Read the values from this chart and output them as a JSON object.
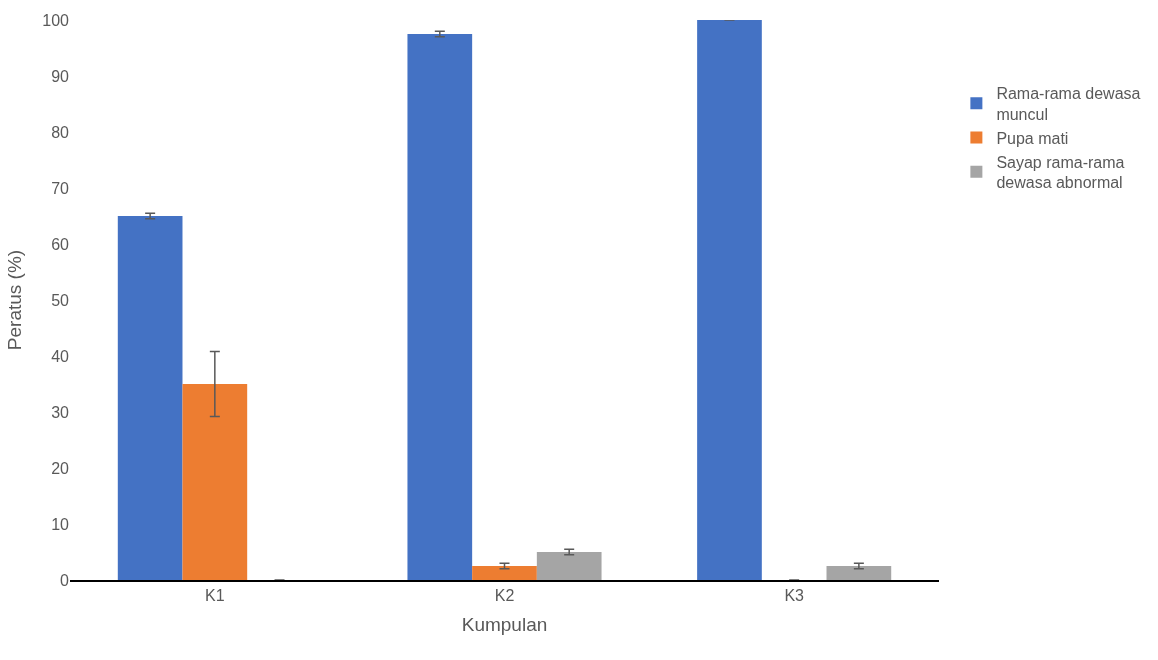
{
  "chart_data": {
    "type": "bar",
    "xlabel": "Kumpulan",
    "ylabel": "Peratus (%)",
    "categories": [
      "K1",
      "K2",
      "K3"
    ],
    "series": [
      {
        "name": "Rama-rama dewasa muncul",
        "color": "#4472c4",
        "values": [
          65,
          97.5,
          100
        ],
        "errors": [
          0.5,
          0.5,
          0
        ]
      },
      {
        "name": "Pupa mati",
        "color": "#ed7d31",
        "values": [
          35,
          2.5,
          0
        ],
        "errors": [
          5.8,
          0.5,
          null
        ]
      },
      {
        "name": "Sayap rama-rama dewasa abnormal",
        "color": "#a5a5a5",
        "values": [
          0,
          5,
          2.5
        ],
        "errors": [
          null,
          0.5,
          0.5
        ]
      }
    ],
    "ylim": [
      0,
      100
    ],
    "yticks": [
      0,
      10,
      20,
      30,
      40,
      50,
      60,
      70,
      80,
      90,
      100
    ],
    "grid": false,
    "legend": "right"
  }
}
